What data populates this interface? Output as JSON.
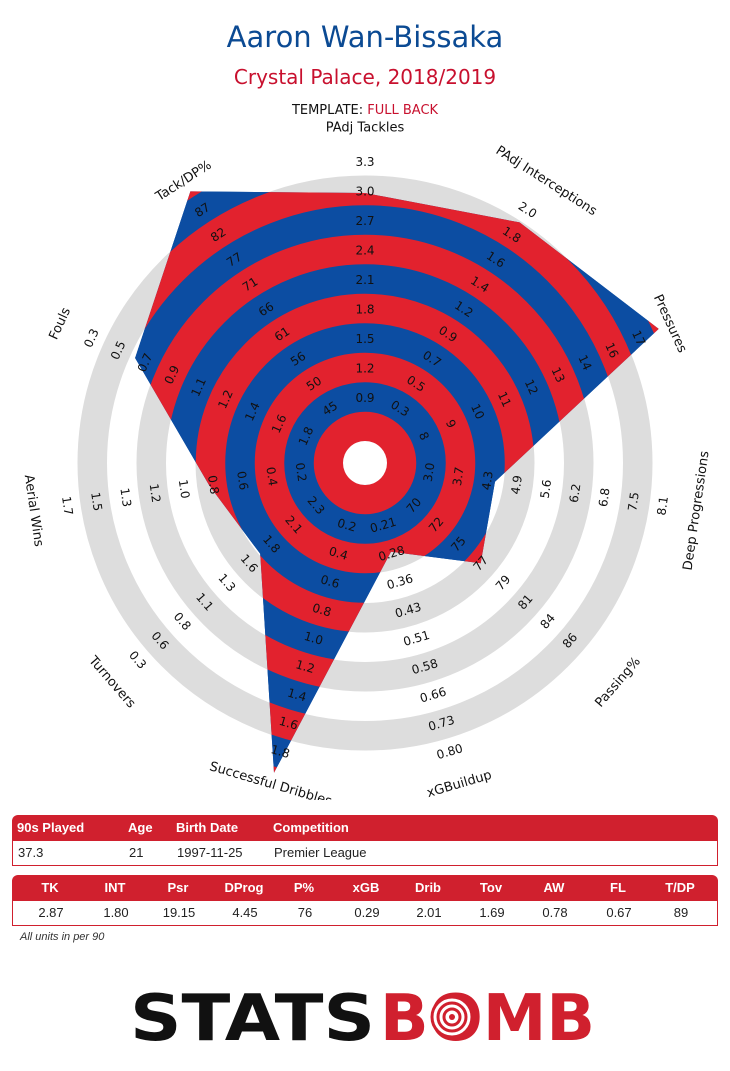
{
  "header": {
    "player_name": "Aaron Wan-Bissaka",
    "team_season": "Crystal Palace, 2018/2019",
    "template_label": "TEMPLATE:",
    "template_value": "FULL BACK"
  },
  "colors": {
    "blue": "#0b4a93",
    "red": "#c8102e",
    "ring": "#dddddd",
    "band_red": "#e2222e",
    "band_blue": "#0c4da2"
  },
  "chart_data": {
    "type": "radar",
    "title": "Aaron Wan-Bissaka",
    "axes": [
      {
        "name": "PAdj Tackles",
        "ticks": [
          "0.9",
          "1.2",
          "1.5",
          "1.8",
          "2.1",
          "2.4",
          "2.7",
          "3.0",
          "3.3"
        ],
        "min": 0.6,
        "max": 3.3,
        "value": 2.87
      },
      {
        "name": "PAdj Interceptions",
        "ticks": [
          "0.3",
          "0.5",
          "0.7",
          "0.9",
          "1.2",
          "1.4",
          "1.6",
          "1.8",
          "2.0"
        ],
        "min": 0.1,
        "max": 2.0,
        "value": 1.8
      },
      {
        "name": "Pressures",
        "ticks": [
          "8",
          "9",
          "10",
          "11",
          "12",
          "13",
          "14",
          "16",
          "17"
        ],
        "min": 7,
        "max": 17,
        "value": 19.15
      },
      {
        "name": "Deep Progressions",
        "ticks": [
          "3.0",
          "3.7",
          "4.3",
          "4.9",
          "5.6",
          "6.2",
          "6.8",
          "7.5",
          "8.1"
        ],
        "min": 2.3,
        "max": 8.1,
        "value": 4.45
      },
      {
        "name": "Passing%",
        "ticks": [
          "70",
          "72",
          "75",
          "77",
          "79",
          "81",
          "84",
          "86"
        ],
        "min": 68,
        "max": 86,
        "value": 76
      },
      {
        "name": "xGBuildup",
        "ticks": [
          "0.21",
          "0.28",
          "0.36",
          "0.43",
          "0.51",
          "0.58",
          "0.66",
          "0.73",
          "0.80"
        ],
        "min": 0.13,
        "max": 0.8,
        "value": 0.29
      },
      {
        "name": "Successful Dribbles",
        "ticks": [
          "0.2",
          "0.4",
          "0.6",
          "0.8",
          "1.0",
          "1.2",
          "1.4",
          "1.6",
          "1.8"
        ],
        "min": 0.0,
        "max": 1.8,
        "value": 2.01
      },
      {
        "name": "Turnovers",
        "ticks": [
          "2.3",
          "2.1",
          "1.8",
          "1.6",
          "1.3",
          "1.1",
          "0.8",
          "0.6",
          "0.3"
        ],
        "min": 2.6,
        "max": 0.3,
        "value": 1.69
      },
      {
        "name": "Aerial Wins",
        "ticks": [
          "0.2",
          "0.4",
          "0.6",
          "0.8",
          "1.0",
          "1.2",
          "1.3",
          "1.5",
          "1.7"
        ],
        "min": 0.0,
        "max": 1.7,
        "value": 0.78
      },
      {
        "name": "Fouls",
        "ticks": [
          "1.8",
          "1.6",
          "1.4",
          "1.2",
          "1.1",
          "0.9",
          "0.7",
          "0.5",
          "0.3"
        ],
        "min": 2.0,
        "max": 0.3,
        "value": 0.67
      },
      {
        "name": "Tack/DP%",
        "ticks": [
          "45",
          "50",
          "56",
          "61",
          "66",
          "71",
          "77",
          "82",
          "87"
        ],
        "min": 40,
        "max": 87,
        "value": 89
      }
    ]
  },
  "info_table": {
    "headers": [
      "90s Played",
      "Age",
      "Birth Date",
      "Competition"
    ],
    "values": [
      "37.3",
      "21",
      "1997-11-25",
      "Premier League"
    ]
  },
  "stats_table": {
    "headers": [
      "TK",
      "INT",
      "Psr",
      "DProg",
      "P%",
      "xGB",
      "Drib",
      "Tov",
      "AW",
      "FL",
      "T/DP"
    ],
    "values": [
      "2.87",
      "1.80",
      "19.15",
      "4.45",
      "76",
      "0.29",
      "2.01",
      "1.69",
      "0.78",
      "0.67",
      "89"
    ]
  },
  "note": "All units in per 90",
  "logo": {
    "part1": "STATS",
    "part2": "BOMB"
  }
}
